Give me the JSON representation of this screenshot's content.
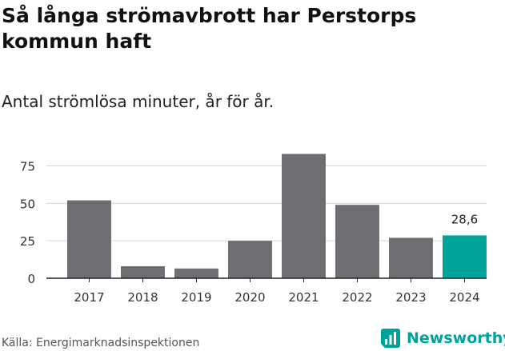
{
  "title": "Så långa strömavbrott har Perstorps kommun haft",
  "subtitle": "Antal strömlösa minuter, år för år.",
  "source": "Källa: Energimarknadsinspektionen",
  "brand": "Newsworthy",
  "colors": {
    "bar": "#6e6d72",
    "highlight": "#00a39a",
    "grid": "#d6d6d6",
    "axis": "#222222"
  },
  "chart_data": {
    "type": "bar",
    "categories": [
      "2017",
      "2018",
      "2019",
      "2020",
      "2021",
      "2022",
      "2023",
      "2024"
    ],
    "values": [
      52,
      8,
      6.5,
      25,
      83,
      49,
      27,
      28.6
    ],
    "highlight_index": 7,
    "value_labels": [
      null,
      null,
      null,
      null,
      null,
      null,
      null,
      "28,6"
    ],
    "yticks": [
      0,
      25,
      50,
      75
    ],
    "ylim": [
      0,
      87
    ],
    "title": "Så långa strömavbrott har Perstorps kommun haft",
    "xlabel": "",
    "ylabel": "",
    "grid": true
  }
}
